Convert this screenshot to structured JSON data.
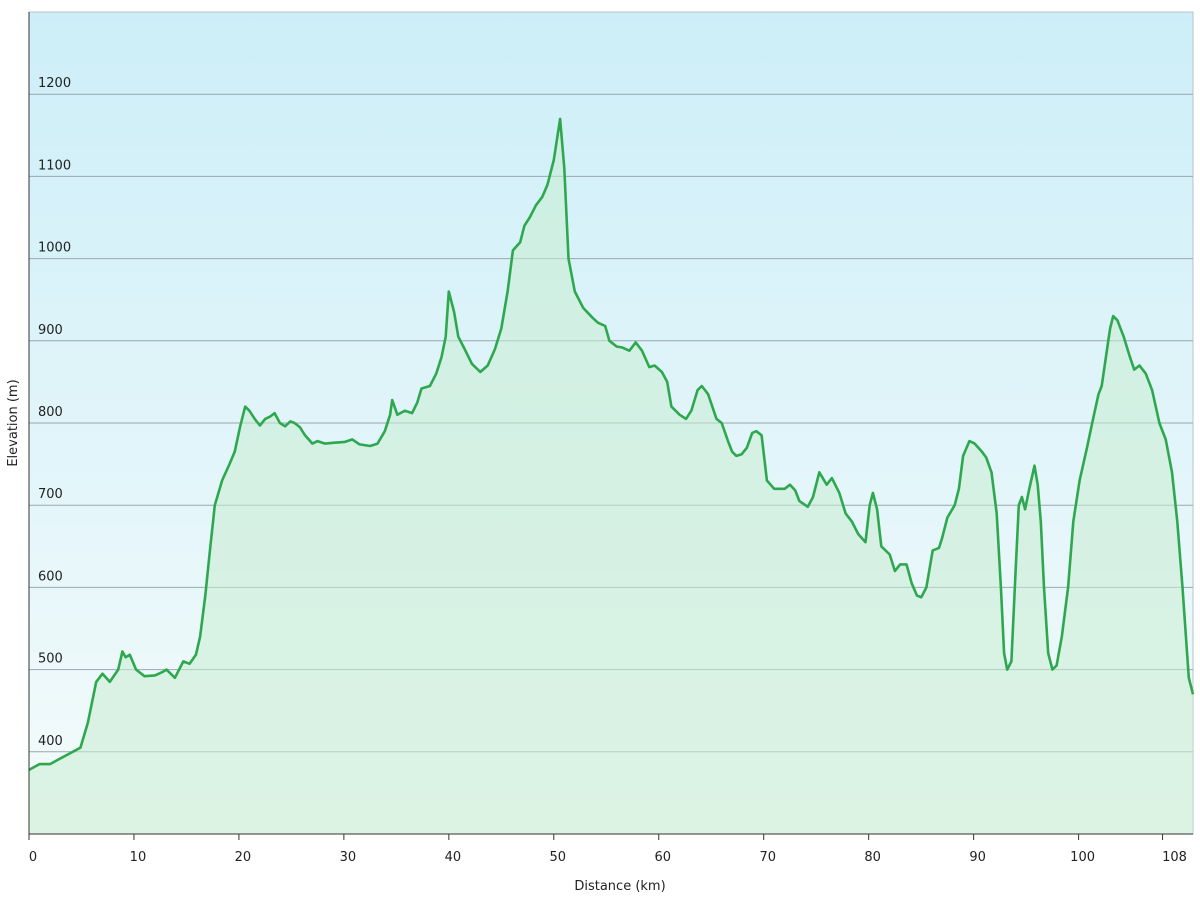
{
  "chart_data": {
    "type": "area-line",
    "x_label": "Distance  (km)",
    "y_label": "Elevation (m)",
    "color": "#2ea84f",
    "fill_color": "#c9ecd2",
    "grid": true,
    "xlim": [
      0,
      110.9
    ],
    "xticks": [
      0,
      10,
      20,
      30,
      40,
      50,
      60,
      70,
      80,
      90,
      100,
      108
    ],
    "ylim": [
      300,
      1300
    ],
    "yticks": [
      400,
      500,
      600,
      700,
      800,
      900,
      1000,
      1100,
      1200
    ],
    "x": [
      0,
      1.0,
      2.0,
      3.0,
      3.9,
      4.9,
      5.6,
      6.4,
      7.0,
      7.7,
      8.5,
      8.9,
      9.2,
      9.6,
      10.2,
      11.0,
      12.0,
      12.7,
      13.1,
      13.9,
      14.7,
      15.3,
      15.9,
      16.3,
      16.8,
      17.2,
      17.7,
      18.4,
      19.1,
      19.6,
      20.1,
      20.6,
      21.0,
      21.5,
      22.0,
      22.5,
      23.0,
      23.4,
      23.9,
      24.4,
      24.9,
      25.3,
      25.8,
      26.3,
      27.0,
      27.5,
      28.2,
      29.1,
      30.1,
      30.8,
      31.5,
      32.5,
      33.2,
      33.9,
      34.4,
      34.6,
      35.1,
      35.8,
      36.5,
      37.0,
      37.4,
      38.2,
      38.8,
      39.3,
      39.7,
      40.0,
      40.5,
      40.9,
      41.5,
      42.2,
      43.0,
      43.7,
      44.4,
      45.0,
      45.6,
      46.1,
      46.8,
      47.2,
      47.7,
      48.3,
      48.9,
      49.4,
      50.0,
      50.6,
      51.0,
      51.4,
      52.0,
      52.8,
      53.7,
      54.2,
      54.9,
      55.3,
      56.0,
      56.5,
      57.2,
      57.8,
      58.4,
      59.1,
      59.6,
      60.3,
      60.8,
      61.2,
      62.0,
      62.6,
      63.1,
      63.7,
      64.1,
      64.7,
      65.1,
      65.5,
      66.0,
      66.6,
      67.0,
      67.4,
      67.9,
      68.4,
      68.9,
      69.3,
      69.8,
      70.3,
      71.0,
      72.0,
      72.5,
      73.0,
      73.4,
      74.2,
      74.7,
      75.3,
      76.0,
      76.5,
      77.2,
      77.8,
      78.4,
      79.0,
      79.7,
      80.1,
      80.4,
      80.8,
      81.2,
      82.0,
      82.5,
      83.0,
      83.6,
      84.1,
      84.6,
      85.0,
      85.5,
      86.1,
      86.7,
      87.0,
      87.5,
      88.2,
      88.6,
      89.0,
      89.6,
      90.1,
      90.8,
      91.2,
      91.7,
      92.2,
      92.6,
      92.9,
      93.2,
      93.6,
      94.0,
      94.3,
      94.6,
      94.9,
      95.3,
      95.8,
      96.1,
      96.4,
      96.7,
      97.1,
      97.5,
      97.9,
      98.4,
      99.0,
      99.5,
      100.1,
      100.8,
      101.3,
      101.9,
      102.2,
      102.6,
      103.0,
      103.3,
      103.7,
      104.3,
      104.9,
      105.3,
      105.8,
      106.4,
      107.0,
      107.7,
      108.3,
      108.9,
      109.4,
      109.9,
      110.5,
      110.9
    ],
    "values": [
      378,
      385,
      385,
      392,
      398,
      405,
      435,
      485,
      495,
      485,
      500,
      522,
      515,
      518,
      500,
      492,
      493,
      497,
      500,
      490,
      510,
      507,
      518,
      540,
      590,
      640,
      700,
      730,
      750,
      765,
      795,
      820,
      815,
      805,
      797,
      805,
      808,
      812,
      800,
      796,
      802,
      800,
      795,
      785,
      775,
      778,
      775,
      776,
      777,
      780,
      774,
      772,
      775,
      790,
      810,
      828,
      810,
      815,
      812,
      825,
      842,
      845,
      860,
      880,
      905,
      960,
      935,
      905,
      890,
      872,
      862,
      870,
      890,
      915,
      960,
      1010,
      1020,
      1040,
      1050,
      1065,
      1075,
      1090,
      1120,
      1170,
      1110,
      1000,
      960,
      940,
      928,
      922,
      918,
      900,
      893,
      892,
      888,
      898,
      888,
      868,
      870,
      862,
      850,
      820,
      810,
      805,
      815,
      840,
      845,
      835,
      820,
      805,
      800,
      778,
      765,
      760,
      762,
      770,
      788,
      790,
      785,
      730,
      720,
      720,
      725,
      718,
      705,
      698,
      710,
      740,
      725,
      733,
      715,
      690,
      680,
      665,
      655,
      700,
      715,
      695,
      650,
      640,
      620,
      628,
      628,
      605,
      590,
      588,
      600,
      645,
      648,
      660,
      685,
      700,
      720,
      760,
      778,
      775,
      765,
      758,
      740,
      690,
      600,
      520,
      500,
      510,
      620,
      700,
      710,
      695,
      720,
      748,
      725,
      680,
      600,
      520,
      500,
      505,
      540,
      600,
      680,
      730,
      770,
      800,
      835,
      845,
      880,
      915,
      930,
      925,
      905,
      880,
      865,
      870,
      860,
      840,
      800,
      780,
      740,
      680,
      600,
      490,
      470
    ]
  }
}
